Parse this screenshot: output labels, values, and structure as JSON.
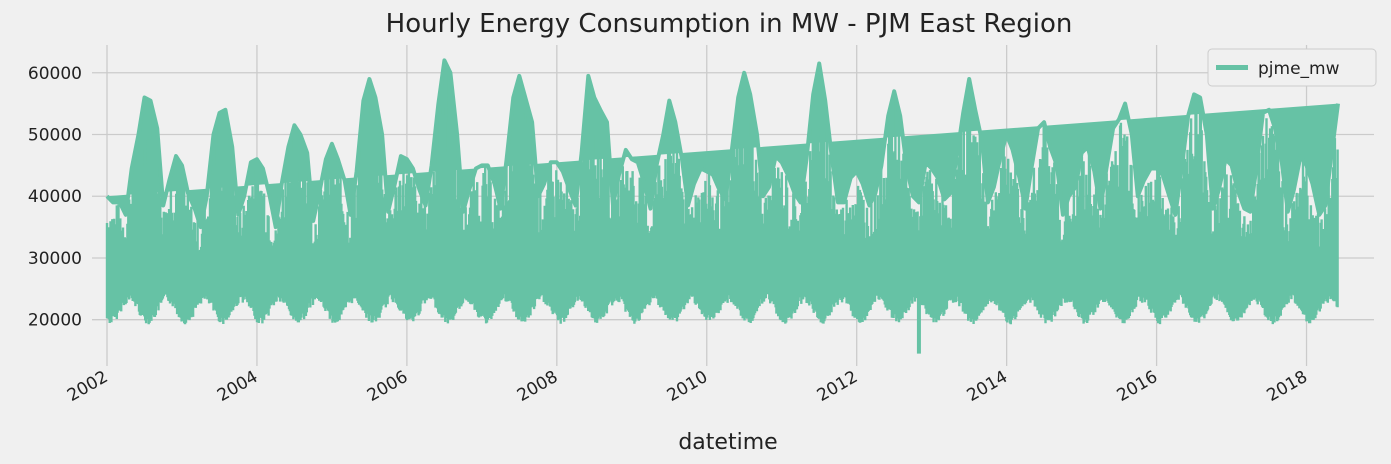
{
  "chart_data": {
    "type": "line",
    "title": "Hourly Energy Consumption in MW - PJM East Region",
    "xlabel": "datetime",
    "ylabel": "",
    "x_range": [
      2001.8,
      2018.9
    ],
    "ylim": [
      12500,
      64500
    ],
    "x_ticks": [
      {
        "value": 2002,
        "label": "2002"
      },
      {
        "value": 2004,
        "label": "2004"
      },
      {
        "value": 2006,
        "label": "2006"
      },
      {
        "value": 2008,
        "label": "2008"
      },
      {
        "value": 2010,
        "label": "2010"
      },
      {
        "value": 2012,
        "label": "2012"
      },
      {
        "value": 2014,
        "label": "2014"
      },
      {
        "value": 2016,
        "label": "2016"
      },
      {
        "value": 2018,
        "label": "2018"
      }
    ],
    "y_ticks": [
      {
        "value": 20000,
        "label": "20000"
      },
      {
        "value": 30000,
        "label": "30000"
      },
      {
        "value": 40000,
        "label": "40000"
      },
      {
        "value": 50000,
        "label": "50000"
      },
      {
        "value": 60000,
        "label": "60000"
      }
    ],
    "grid": true,
    "legend_position": "top-right",
    "series": [
      {
        "name": "pjme_mw",
        "color": "#66c2a5",
        "x": [
          2002.0,
          2002.08,
          2002.17,
          2002.25,
          2002.33,
          2002.42,
          2002.5,
          2002.58,
          2002.67,
          2002.75,
          2002.83,
          2002.92,
          2003.0,
          2003.08,
          2003.17,
          2003.25,
          2003.33,
          2003.42,
          2003.5,
          2003.58,
          2003.67,
          2003.75,
          2003.83,
          2003.92,
          2004.0,
          2004.08,
          2004.17,
          2004.25,
          2004.33,
          2004.42,
          2004.5,
          2004.58,
          2004.67,
          2004.75,
          2004.83,
          2004.92,
          2005.0,
          2005.08,
          2005.17,
          2005.25,
          2005.33,
          2005.42,
          2005.5,
          2005.58,
          2005.67,
          2005.75,
          2005.83,
          2005.92,
          2006.0,
          2006.08,
          2006.17,
          2006.25,
          2006.33,
          2006.42,
          2006.5,
          2006.58,
          2006.67,
          2006.75,
          2006.83,
          2006.92,
          2007.0,
          2007.08,
          2007.17,
          2007.25,
          2007.33,
          2007.42,
          2007.5,
          2007.58,
          2007.67,
          2007.75,
          2007.83,
          2007.92,
          2008.0,
          2008.08,
          2008.17,
          2008.25,
          2008.33,
          2008.42,
          2008.5,
          2008.58,
          2008.67,
          2008.75,
          2008.83,
          2008.92,
          2009.0,
          2009.08,
          2009.17,
          2009.25,
          2009.33,
          2009.42,
          2009.5,
          2009.58,
          2009.67,
          2009.75,
          2009.83,
          2009.92,
          2010.0,
          2010.08,
          2010.17,
          2010.25,
          2010.33,
          2010.42,
          2010.5,
          2010.58,
          2010.67,
          2010.75,
          2010.83,
          2010.92,
          2011.0,
          2011.08,
          2011.17,
          2011.25,
          2011.33,
          2011.42,
          2011.5,
          2011.58,
          2011.67,
          2011.75,
          2011.83,
          2011.92,
          2012.0,
          2012.08,
          2012.17,
          2012.25,
          2012.33,
          2012.42,
          2012.5,
          2012.58,
          2012.67,
          2012.75,
          2012.83,
          2012.92,
          2013.0,
          2013.08,
          2013.17,
          2013.25,
          2013.33,
          2013.42,
          2013.5,
          2013.58,
          2013.67,
          2013.75,
          2013.83,
          2013.92,
          2014.0,
          2014.08,
          2014.17,
          2014.25,
          2014.33,
          2014.42,
          2014.5,
          2014.58,
          2014.67,
          2014.75,
          2014.83,
          2014.92,
          2015.0,
          2015.08,
          2015.17,
          2015.25,
          2015.33,
          2015.42,
          2015.5,
          2015.58,
          2015.67,
          2015.75,
          2015.83,
          2015.92,
          2016.0,
          2016.08,
          2016.17,
          2016.25,
          2016.33,
          2016.42,
          2016.5,
          2016.58,
          2016.67,
          2016.75,
          2016.83,
          2016.92,
          2017.0,
          2017.08,
          2017.17,
          2017.25,
          2017.33,
          2017.42,
          2017.5,
          2017.58,
          2017.67,
          2017.75,
          2017.83,
          2017.92,
          2018.0,
          2018.08,
          2018.17,
          2018.25,
          2018.33,
          2018.42,
          2018.5,
          2018.58
        ],
        "max": [
          40000,
          39000,
          39000,
          37000,
          44500,
          50000,
          56000,
          55500,
          51000,
          38500,
          42500,
          46500,
          45000,
          40500,
          38000,
          35000,
          40000,
          50000,
          53500,
          54000,
          48000,
          37000,
          40000,
          45500,
          46000,
          44500,
          40000,
          35000,
          42000,
          48000,
          51500,
          50000,
          47000,
          36000,
          40500,
          46000,
          48500,
          46000,
          42500,
          37000,
          44000,
          55500,
          59000,
          56000,
          50000,
          37500,
          41500,
          46500,
          46000,
          44500,
          41000,
          38500,
          45000,
          55000,
          62000,
          60000,
          50000,
          37500,
          41000,
          44500,
          45000,
          45000,
          42000,
          38000,
          46000,
          56000,
          59500,
          56000,
          52000,
          40000,
          42000,
          45500,
          45500,
          44000,
          41000,
          38500,
          47000,
          59500,
          56000,
          54000,
          52000,
          38500,
          43500,
          47500,
          46000,
          45500,
          42000,
          38000,
          45000,
          50000,
          55500,
          52000,
          46000,
          38500,
          42000,
          44500,
          44000,
          43500,
          41000,
          39500,
          47000,
          56000,
          60000,
          56500,
          50000,
          40000,
          41500,
          46500,
          45500,
          43500,
          40500,
          39000,
          46000,
          56500,
          61500,
          55500,
          46000,
          39000,
          39000,
          43000,
          44000,
          42000,
          38500,
          40500,
          45000,
          53000,
          57000,
          53000,
          44500,
          40000,
          39000,
          45500,
          44500,
          43000,
          39500,
          40500,
          46000,
          53500,
          59000,
          54000,
          49000,
          39000,
          41500,
          46500,
          50000,
          47500,
          43000,
          38000,
          44500,
          51000,
          52000,
          48000,
          45000,
          37000,
          40000,
          41500,
          47000,
          48000,
          44000,
          38000,
          44500,
          51000,
          52500,
          55000,
          50000,
          40000,
          42500,
          44500,
          44500,
          43500,
          40000,
          37000,
          44000,
          53000,
          56500,
          56000,
          50000,
          38000,
          41000,
          46000,
          45000,
          41000,
          38000,
          37500,
          44500,
          53500,
          54000,
          51000,
          45500,
          37500,
          41000,
          46500,
          45000,
          42000,
          37000,
          38500,
          46500,
          55000
        ]
      }
    ]
  }
}
